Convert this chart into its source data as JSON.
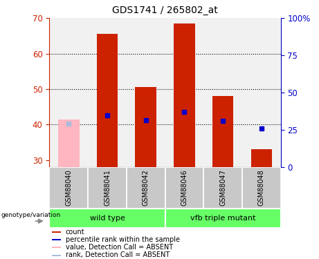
{
  "title": "GDS1741 / 265802_at",
  "samples": [
    "GSM88040",
    "GSM88041",
    "GSM88042",
    "GSM88046",
    "GSM88047",
    "GSM88048"
  ],
  "bar_bottoms": [
    28,
    28,
    28,
    28,
    28,
    28
  ],
  "bar_tops": [
    41.5,
    65.5,
    50.5,
    68.5,
    48.0,
    33.0
  ],
  "bar_colors": [
    "#FFB6C1",
    "#CC2200",
    "#CC2200",
    "#CC2200",
    "#CC2200",
    "#CC2200"
  ],
  "rank_values": [
    40.3,
    42.5,
    41.2,
    43.5,
    41.0,
    38.8
  ],
  "rank_colors": [
    "#AABBDD",
    "#0000CC",
    "#0000CC",
    "#0000CC",
    "#0000CC",
    "#0000CC"
  ],
  "absent_flags": [
    true,
    false,
    false,
    false,
    false,
    false
  ],
  "ylim_left": [
    28,
    70
  ],
  "ylim_right": [
    0,
    100
  ],
  "yticks_left": [
    30,
    40,
    50,
    60,
    70
  ],
  "yticks_right": [
    0,
    25,
    50,
    75,
    100
  ],
  "ytick_labels_right": [
    "0",
    "25",
    "50",
    "75",
    "100%"
  ],
  "grid_values": [
    40,
    50,
    60
  ],
  "left_axis_color": "#CC2200",
  "right_axis_color": "#0000CC",
  "group_label": "genotype/variation",
  "wt_label": "wild type",
  "vfb_label": "vfb triple mutant",
  "sample_col_color": "#C8C8C8",
  "group_color": "#66FF66",
  "legend_items": [
    {
      "label": "count",
      "color": "#CC2200"
    },
    {
      "label": "percentile rank within the sample",
      "color": "#0000CC"
    },
    {
      "label": "value, Detection Call = ABSENT",
      "color": "#FFB6C1"
    },
    {
      "label": "rank, Detection Call = ABSENT",
      "color": "#AABBDD"
    }
  ],
  "bar_width": 0.55
}
